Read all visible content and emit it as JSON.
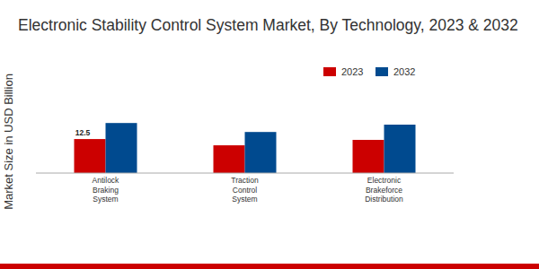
{
  "chart_data": {
    "type": "bar",
    "title": "Electronic Stability Control System Market, By Technology, 2023 & 2032",
    "y_label": "Market Size in USD Billion",
    "categories": [
      "Antilock Braking System",
      "Traction Control System",
      "Electronic Brakeforce Distribution"
    ],
    "series": [
      {
        "name": "2023",
        "color": "#cc0000",
        "values": [
          12.5,
          10.2,
          12.2
        ],
        "value_labels": [
          "12.5",
          null,
          null
        ]
      },
      {
        "name": "2032",
        "color": "#004a8f",
        "values": [
          18.4,
          15.1,
          17.8
        ]
      }
    ],
    "ylim": [
      0,
      30
    ],
    "grid": false,
    "legend": "top-right",
    "data_labels": true,
    "tick_labels": "x"
  }
}
